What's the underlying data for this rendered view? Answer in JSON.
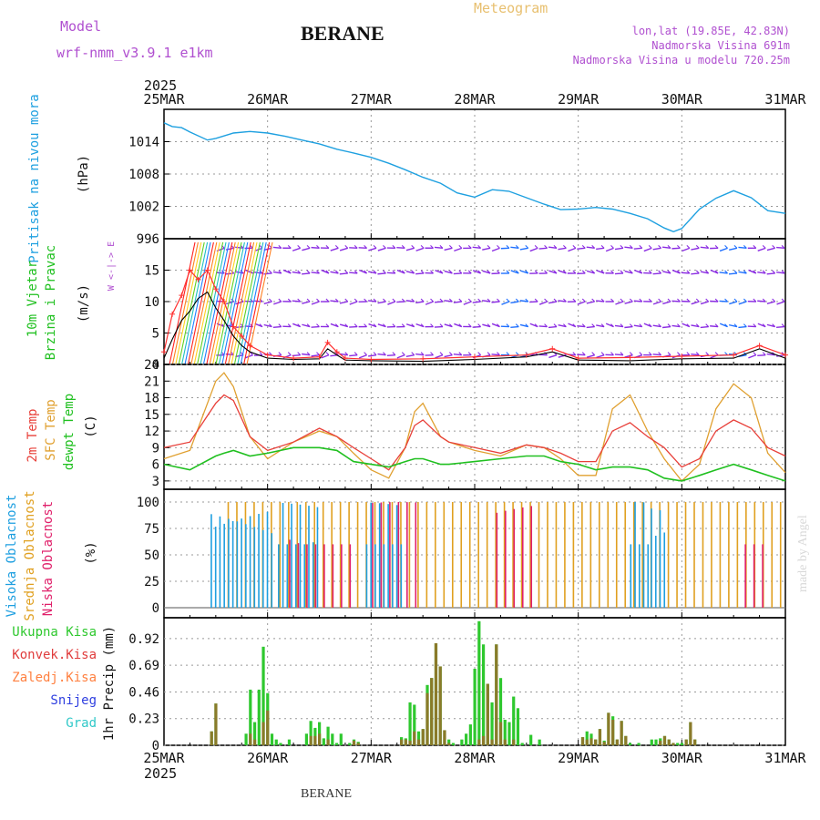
{
  "header": {
    "model_label": "Model",
    "model_name": "wrf-nmm_v3.9.1  e1km",
    "station": "BERANE",
    "product": "Meteogram",
    "lonlat": "lon,lat (19.85E, 42.83N)",
    "elevation": "Nadmorska Visina 691m",
    "model_elevation": "Nadmorska Visina u modelu 720.25m",
    "footer_station": "BERANE",
    "watermark": "made by Angel"
  },
  "colors": {
    "pressure": "#1ea0e0",
    "temp2m": "#e8403a",
    "sfc": "#e0a030",
    "dewpt": "#20c020",
    "wind_purple": "#8a2be2",
    "wind_blue": "#1e6fff",
    "gust_red": "#ff3030",
    "high_cloud": "#1e9fe0",
    "mid_cloud": "#e0a020",
    "low_cloud": "#e0206a",
    "total_precip": "#2ec82e",
    "conv_precip": "#e03c3c",
    "frozen": "#ff8040",
    "snow": "#3040e0",
    "graupel": "#30c8c8",
    "title_purple": "#b050d0",
    "meteogram_label": "#e8c070"
  },
  "time_axis": {
    "year": "2025",
    "days": [
      "25MAR",
      "26MAR",
      "27MAR",
      "28MAR",
      "29MAR",
      "30MAR",
      "31MAR"
    ]
  },
  "chart_data": [
    {
      "type": "line",
      "ylabel": "Pritisak na nivou mora",
      "unit": "(hPa)",
      "ylim": [
        996,
        1020
      ],
      "yticks": [
        996,
        1002,
        1008,
        1014
      ],
      "x_days": [
        0,
        0.08,
        0.17,
        0.25,
        0.42,
        0.5,
        0.67,
        0.83,
        1.0,
        1.17,
        1.33,
        1.5,
        1.67,
        1.83,
        2.0,
        2.17,
        2.33,
        2.5,
        2.67,
        2.83,
        3.0,
        3.17,
        3.33,
        3.5,
        3.67,
        3.83,
        4.0,
        4.17,
        4.33,
        4.5,
        4.67,
        4.83,
        4.92,
        5.0,
        5.17,
        5.33,
        5.5,
        5.67,
        5.83,
        6.0
      ],
      "series": [
        {
          "key": "pressure",
          "values": [
            1017.5,
            1016.8,
            1016.6,
            1015.8,
            1014.3,
            1014.6,
            1015.6,
            1015.9,
            1015.6,
            1015.0,
            1014.3,
            1013.6,
            1012.6,
            1011.9,
            1011.1,
            1010.0,
            1008.8,
            1007.4,
            1006.3,
            1004.5,
            1003.7,
            1005.1,
            1004.8,
            1003.6,
            1002.4,
            1001.4,
            1001.5,
            1001.8,
            1001.5,
            1000.7,
            999.7,
            998.0,
            997.3,
            997.9,
            1001.5,
            1003.5,
            1004.9,
            1003.6,
            1001.2,
            1000.7
          ]
        }
      ]
    },
    {
      "type": "line",
      "ylabel": "10m Vjetar Brzina i Pravac",
      "unit": "(m/s)",
      "ylim": [
        0,
        20
      ],
      "yticks": [
        0,
        5,
        10,
        15
      ],
      "compass_label": "W <-|-> E",
      "x_days": [
        0,
        0.08,
        0.17,
        0.25,
        0.33,
        0.42,
        0.5,
        0.58,
        0.67,
        0.75,
        0.83,
        1.0,
        1.25,
        1.5,
        1.58,
        1.67,
        1.75,
        2.0,
        2.5,
        3.0,
        3.5,
        3.75,
        4.0,
        4.5,
        5.0,
        5.5,
        5.75,
        6.0
      ],
      "series": [
        {
          "key": "speed",
          "values": [
            1.0,
            4.0,
            7.0,
            8.5,
            10.5,
            11.5,
            9.0,
            7.0,
            4.5,
            3.0,
            2.0,
            1.0,
            0.8,
            0.9,
            2.5,
            1.5,
            0.7,
            0.6,
            0.5,
            0.8,
            1.2,
            2.0,
            0.7,
            0.6,
            0.9,
            1.0,
            2.5,
            1.0
          ]
        },
        {
          "key": "gust",
          "values": [
            2.0,
            8.0,
            11.0,
            15.0,
            13.5,
            15.0,
            12.0,
            10.0,
            6.0,
            4.5,
            3.0,
            1.5,
            1.0,
            1.2,
            3.5,
            2.0,
            1.0,
            0.8,
            0.9,
            1.2,
            1.5,
            2.5,
            1.0,
            1.1,
            1.3,
            1.5,
            3.0,
            1.5
          ]
        }
      ]
    },
    {
      "type": "line",
      "ylabel": [
        "2m Temp",
        "SFC Temp",
        "dewpt Temp"
      ],
      "unit": "(C)",
      "ylim": [
        1.5,
        24
      ],
      "yticks": [
        3,
        6,
        9,
        12,
        15,
        18,
        21,
        24
      ],
      "x_days": [
        0,
        0.25,
        0.5,
        0.58,
        0.67,
        0.83,
        1.0,
        1.25,
        1.5,
        1.67,
        1.83,
        2.0,
        2.17,
        2.33,
        2.42,
        2.5,
        2.67,
        2.75,
        3.0,
        3.25,
        3.5,
        3.67,
        3.83,
        4.0,
        4.17,
        4.33,
        4.5,
        4.67,
        4.83,
        5.0,
        5.17,
        5.33,
        5.5,
        5.67,
        5.83,
        6.0
      ],
      "series": [
        {
          "key": "temp2m",
          "values": [
            9,
            10,
            17,
            18.5,
            17.5,
            11,
            8.5,
            10,
            12.5,
            11,
            9,
            7,
            5,
            9,
            13,
            14,
            11,
            10,
            9,
            8,
            9.5,
            9,
            8,
            6.5,
            6.5,
            12,
            13.5,
            11,
            9,
            5.5,
            7,
            12,
            14,
            12.5,
            9,
            7.5
          ]
        },
        {
          "key": "sfc",
          "values": [
            7,
            8.5,
            21,
            22.5,
            20,
            11,
            7,
            10,
            12,
            11,
            8,
            5,
            3.5,
            9,
            15.5,
            17,
            11,
            10,
            8.5,
            7.5,
            9.5,
            9,
            7,
            4,
            4,
            16,
            18.5,
            12,
            7,
            3,
            6,
            16,
            20.5,
            18,
            8,
            4.5
          ]
        },
        {
          "key": "dewpt",
          "values": [
            6,
            5,
            7.5,
            8,
            8.5,
            7.5,
            8,
            9,
            9,
            8.5,
            6.5,
            6,
            5.5,
            6.5,
            7,
            7,
            6,
            6,
            6.5,
            7,
            7.5,
            7.5,
            6.5,
            6,
            5,
            5.5,
            5.5,
            5,
            3.5,
            3,
            4,
            5,
            6,
            5,
            4,
            3
          ]
        }
      ]
    },
    {
      "type": "bar",
      "ylabel": [
        "Visoka Oblacnost",
        "Srednja Oblacnost",
        "Niska Oblacnost"
      ],
      "unit": "(%)",
      "ylim": [
        0,
        100
      ],
      "yticks": [
        0,
        25,
        50,
        75,
        100
      ],
      "note": "Hourly cloud-cover bars: high clouds (blue) near 100% on 25-26 Mar and late 29-30 Mar; mid clouds (orange) near 100% almost every hour from 26 Mar to 31 Mar; low clouds (magenta) scattered.",
      "high_periods": [
        [
          0.45,
          1.05
        ],
        [
          1.1,
          1.5
        ],
        [
          1.95,
          2.3
        ],
        [
          4.5,
          4.7
        ],
        [
          4.7,
          4.85
        ]
      ],
      "high_level": 100,
      "mid_periods": [
        [
          0.6,
          6.0
        ]
      ],
      "mid_level": 100,
      "low_periods": [
        [
          1.2,
          1.8
        ],
        [
          2.0,
          2.5
        ],
        [
          3.2,
          3.6
        ],
        [
          5.6,
          5.8
        ]
      ],
      "low_level": 100
    },
    {
      "type": "bar",
      "ylabel": "1hr Precip",
      "unit": "(mm)",
      "legend": [
        "Ukupna Kisa",
        "Konvek.Kisa",
        "Zaledj.Kisa",
        "Snijeg",
        "Grad"
      ],
      "ylim": [
        0,
        1.1
      ],
      "yticks": [
        0,
        0.23,
        0.46,
        0.69,
        0.92
      ],
      "hours": [
        11,
        12,
        19,
        20,
        21,
        22,
        23,
        24,
        25,
        26,
        27,
        29,
        33,
        34,
        35,
        36,
        37,
        38,
        39,
        40,
        41,
        43,
        44,
        45,
        55,
        56,
        57,
        58,
        59,
        60,
        61,
        62,
        63,
        64,
        65,
        66,
        67,
        69,
        70,
        71,
        72,
        73,
        74,
        75,
        76,
        77,
        78,
        79,
        80,
        81,
        82,
        83,
        85,
        87,
        97,
        98,
        99,
        100,
        101,
        102,
        103,
        104,
        105,
        106,
        107,
        108,
        110,
        113,
        114,
        115,
        116,
        117,
        118,
        119,
        120,
        121,
        122,
        123
      ],
      "total": [
        0.12,
        0.36,
        0.1,
        0.48,
        0.2,
        0.48,
        0.85,
        0.45,
        0.1,
        0.05,
        0.02,
        0.05,
        0.1,
        0.21,
        0.15,
        0.2,
        0.06,
        0.16,
        0.1,
        0.02,
        0.1,
        0.02,
        0.05,
        0.03,
        0.07,
        0.06,
        0.37,
        0.35,
        0.12,
        0.14,
        0.52,
        0.58,
        0.88,
        0.68,
        0.13,
        0.05,
        0.02,
        0.05,
        0.1,
        0.18,
        0.66,
        1.07,
        0.87,
        0.53,
        0.37,
        0.87,
        0.58,
        0.22,
        0.2,
        0.42,
        0.32,
        0.02,
        0.09,
        0.05,
        0.07,
        0.12,
        0.1,
        0.05,
        0.14,
        0.04,
        0.28,
        0.25,
        0.05,
        0.21,
        0.08,
        0.02,
        0.02,
        0.05,
        0.05,
        0.06,
        0.08,
        0.05,
        0.02,
        0.02,
        0.02,
        0.05,
        0.2,
        0.05
      ],
      "convective": [
        0.12,
        0.36,
        0,
        0.1,
        0.05,
        0,
        0.2,
        0.3,
        0,
        0,
        0,
        0,
        0,
        0.08,
        0.08,
        0.1,
        0,
        0.05,
        0,
        0,
        0,
        0,
        0.04,
        0.02,
        0.05,
        0.05,
        0.04,
        0.12,
        0.05,
        0.14,
        0.45,
        0.58,
        0.88,
        0.68,
        0.13,
        0.02,
        0,
        0,
        0,
        0,
        0,
        0.05,
        0.08,
        0.53,
        0.05,
        0.87,
        0.2,
        0.05,
        0,
        0.05,
        0,
        0,
        0,
        0,
        0.07,
        0.05,
        0.06,
        0.05,
        0.14,
        0.03,
        0.28,
        0.22,
        0.05,
        0.21,
        0.08,
        0,
        0,
        0,
        0,
        0.04,
        0.08,
        0.05,
        0.02,
        0,
        0,
        0.05,
        0.2,
        0.05
      ]
    }
  ]
}
